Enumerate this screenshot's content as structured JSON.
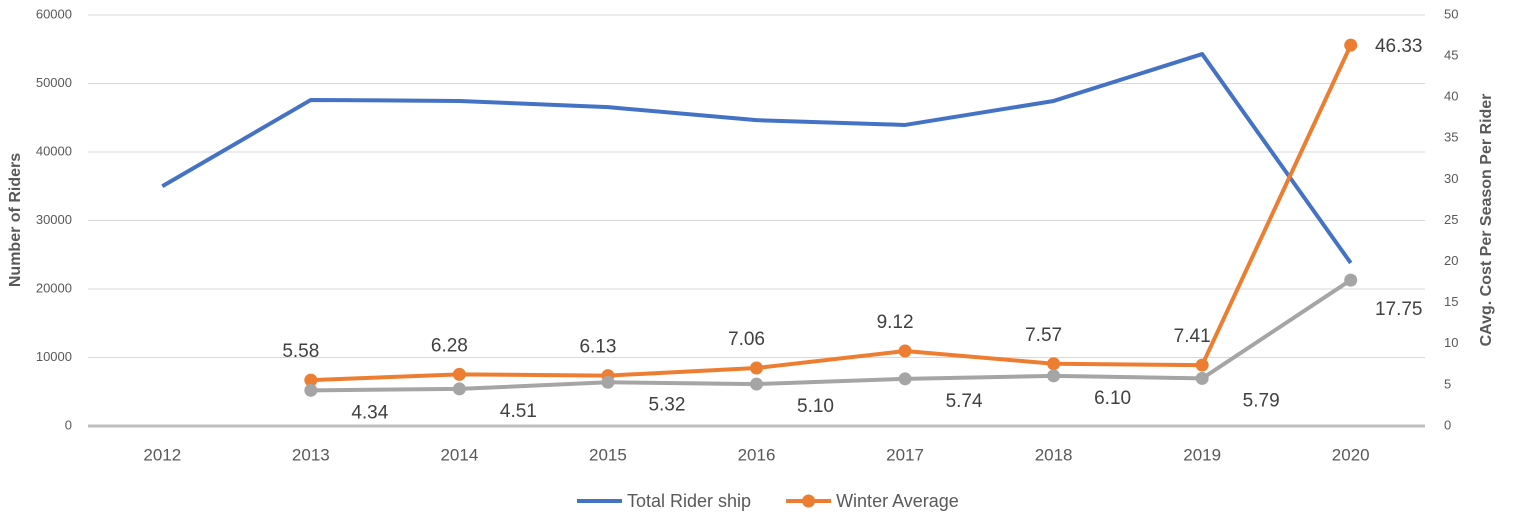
{
  "chart_data": {
    "type": "line",
    "categories": [
      "2012",
      "2013",
      "2014",
      "2015",
      "2016",
      "2017",
      "2018",
      "2019",
      "2020"
    ],
    "ylabel": "Number of Riders",
    "y2label": "CAvg. Cost Per Season Per Rider",
    "ylim": [
      0,
      60000
    ],
    "yticks": [
      0,
      10000,
      20000,
      30000,
      40000,
      50000,
      60000
    ],
    "y2lim": [
      0,
      50
    ],
    "y2ticks": [
      0,
      5,
      10,
      15,
      20,
      25,
      30,
      35,
      40,
      45,
      50
    ],
    "grid": true,
    "legend": "bottom",
    "series": [
      {
        "name": "Total Rider ship",
        "color": "#4472c4",
        "values": [
          35000,
          47600,
          47450,
          46550,
          44650,
          43950,
          47450,
          54300,
          23800
        ]
      },
      {
        "name": "Winter Average",
        "color": "#ed7d31",
        "axis": "y2",
        "markers": true,
        "values": [
          null,
          5.58,
          6.28,
          6.13,
          7.06,
          9.12,
          7.57,
          7.41,
          46.33
        ]
      },
      {
        "color": "#a5a5a5",
        "axis": "y2",
        "markers": true,
        "values": [
          null,
          4.34,
          4.51,
          5.32,
          5.1,
          5.74,
          6.1,
          5.79,
          17.75
        ],
        "value_labels": [
          null,
          "4.34",
          "4.51",
          "5.32",
          "5.10",
          "5.74",
          "6.10",
          "5.79",
          "17.75"
        ]
      }
    ]
  }
}
